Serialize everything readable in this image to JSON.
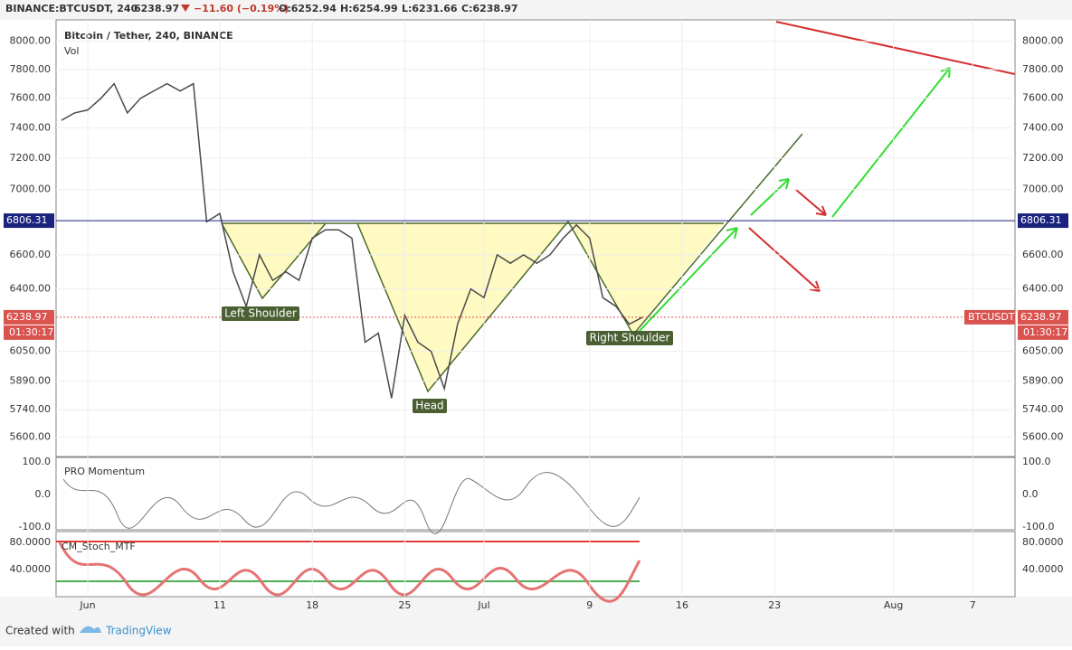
{
  "header": {
    "symbol": "BINANCE:BTCUSDT, 240",
    "last": "6238.97",
    "change": "−11.60 (−0.19%)",
    "open": "O:6252.94",
    "high": "H:6254.99",
    "low": "L:6231.66",
    "close": "C:6238.97"
  },
  "chart_data": {
    "type": "line",
    "title": "Bitcoin / Tether, 240, BINANCE",
    "subtitle": "Vol",
    "log_scale": true,
    "ylim": [
      5503,
      8156
    ],
    "yticks": [
      {
        "value": 8000,
        "label": "8000.00"
      },
      {
        "value": 7800,
        "label": "7800.00"
      },
      {
        "value": 7600,
        "label": "7600.00"
      },
      {
        "value": 7400,
        "label": "7400.00"
      },
      {
        "value": 7200,
        "label": "7200.00"
      },
      {
        "value": 7000,
        "label": "7000.00"
      },
      {
        "value": 6600,
        "label": "6600.00"
      },
      {
        "value": 6400,
        "label": "6400.00"
      },
      {
        "value": 6050,
        "label": "6050.00"
      },
      {
        "value": 5890,
        "label": "5890.00"
      },
      {
        "value": 5740,
        "label": "5740.00"
      },
      {
        "value": 5600,
        "label": "5600.00"
      }
    ],
    "xticks": [
      {
        "value": "Jun 1",
        "label": "Jun"
      },
      {
        "value": "Jun 11",
        "label": "11"
      },
      {
        "value": "Jun 18",
        "label": "18"
      },
      {
        "value": "Jun 25",
        "label": "25"
      },
      {
        "value": "Jul 1",
        "label": "Jul"
      },
      {
        "value": "Jul 9",
        "label": "9"
      },
      {
        "value": "Jul 16",
        "label": "16"
      },
      {
        "value": "Jul 23",
        "label": "23"
      },
      {
        "value": "Aug 1",
        "label": "Aug"
      },
      {
        "value": "Aug 7",
        "label": "7"
      }
    ],
    "x": [
      "May 30",
      "May 31",
      "Jun 1",
      "Jun 2",
      "Jun 3",
      "Jun 4",
      "Jun 5",
      "Jun 6",
      "Jun 7",
      "Jun 8",
      "Jun 9",
      "Jun 10",
      "Jun 11",
      "Jun 12",
      "Jun 13",
      "Jun 14",
      "Jun 15",
      "Jun 16",
      "Jun 17",
      "Jun 18",
      "Jun 19",
      "Jun 20",
      "Jun 21",
      "Jun 22",
      "Jun 23",
      "Jun 24",
      "Jun 25",
      "Jun 26",
      "Jun 27",
      "Jun 28",
      "Jun 29",
      "Jun 30",
      "Jul 1",
      "Jul 2",
      "Jul 3",
      "Jul 4",
      "Jul 5",
      "Jul 6",
      "Jul 7",
      "Jul 8",
      "Jul 9",
      "Jul 10",
      "Jul 11",
      "Jul 12",
      "Jul 13"
    ],
    "series": [
      {
        "name": "BTCUSDT",
        "color": "#4a4a4a",
        "values": [
          7450,
          7500,
          7520,
          7600,
          7700,
          7500,
          7600,
          7650,
          7700,
          7650,
          7700,
          6800,
          6850,
          6500,
          6300,
          6600,
          6450,
          6500,
          6450,
          6700,
          6750,
          6750,
          6700,
          6100,
          6150,
          5800,
          6250,
          6100,
          6050,
          5850,
          6200,
          6400,
          6350,
          6600,
          6550,
          6600,
          6550,
          6600,
          6700,
          6780,
          6700,
          6350,
          6300,
          6200,
          6238.97
        ]
      }
    ],
    "price_lines": [
      {
        "value": 6806.31,
        "label": "6806.31",
        "color": "#1a237e"
      },
      {
        "value": 6238.97,
        "label": "6238.97",
        "color": "#d9534f",
        "symbol": "BTCUSDT",
        "countdown": "01:30:17"
      }
    ],
    "annotations": [
      "Left Shoulder",
      "Head",
      "Right Shoulder"
    ]
  },
  "momentum": {
    "title": "PRO Momentum",
    "ticks": [
      "100.0",
      "0.0",
      "-100.0"
    ]
  },
  "stoch": {
    "title": "CM_Stoch_MTF",
    "ticks": [
      "80.0000",
      "40.0000"
    ]
  },
  "footer": {
    "created": "Created with",
    "brand": "TradingView"
  }
}
